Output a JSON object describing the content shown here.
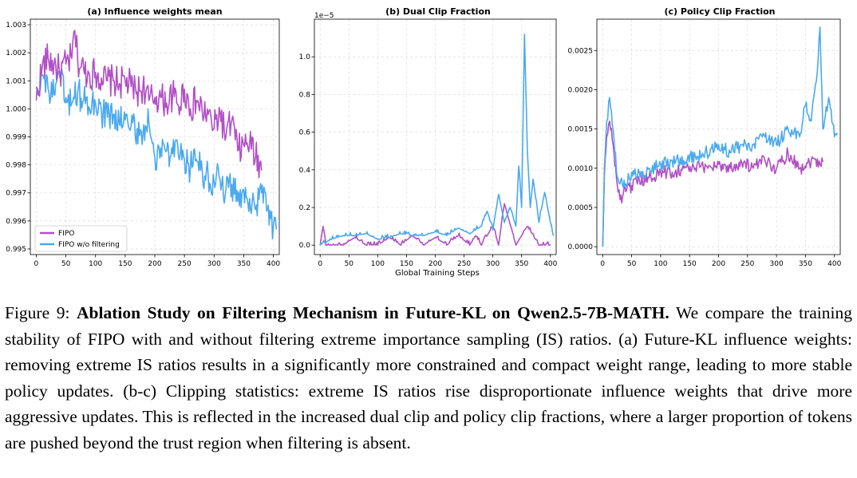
{
  "figure": {
    "shared_xlabel": "Global Training Steps",
    "legend": [
      "FIPO",
      "FIPO w/o filtering"
    ]
  },
  "colors": {
    "fipo": "#b150c5",
    "fipo_wo_filtering": "#4aa9ef"
  },
  "caption": {
    "label": "Figure 9:",
    "bold": "Ablation Study on Filtering Mechanism in Future-KL on Qwen2.5-7B-MATH.",
    "text": "We compare the training stability of FIPO with and without filtering extreme importance sampling (IS) ratios. (a) Future-KL influence weights: removing extreme IS ratios results in a significantly more constrained and compact weight range, leading to more stable policy updates. (b-c) Clipping statistics: extreme IS ratios rise disproportionate influence weights that drive more aggressive updates. This is reflected in the increased dual clip and policy clip fractions, where a larger proportion of tokens are pushed beyond the trust region when filtering is absent."
  },
  "chart_data": [
    {
      "type": "line",
      "title": "(a) Influence weights mean",
      "xlabel": "",
      "ylabel": "",
      "xlim": [
        -10,
        410
      ],
      "ylim": [
        0.9948,
        1.0032
      ],
      "xticks": [
        0,
        50,
        100,
        150,
        200,
        250,
        300,
        350,
        400
      ],
      "xtick_labels": [
        "0",
        "50",
        "100",
        "150",
        "200",
        "250",
        "300",
        "350",
        "400"
      ],
      "yticks": [
        0.995,
        0.996,
        0.997,
        0.998,
        0.999,
        1.0,
        1.001,
        1.002,
        1.003
      ],
      "ytick_labels": [
        "0.995",
        "0.996",
        "0.997",
        "0.998",
        "0.999",
        "1.000",
        "1.001",
        "1.002",
        "1.003"
      ],
      "grid": true,
      "legend_position": "lower-left",
      "series": [
        {
          "name": "FIPO",
          "x": [
            0,
            10,
            20,
            30,
            40,
            50,
            60,
            65,
            70,
            80,
            90,
            100,
            110,
            120,
            130,
            140,
            150,
            160,
            170,
            180,
            190,
            200,
            210,
            220,
            230,
            240,
            250,
            260,
            270,
            280,
            290,
            300,
            310,
            320,
            330,
            340,
            350,
            360,
            370,
            380
          ],
          "y": [
            1.0003,
            1.0015,
            1.0018,
            1.0016,
            1.0013,
            1.0016,
            1.0018,
            1.0028,
            1.0017,
            1.0014,
            1.0012,
            1.0013,
            1.0011,
            1.001,
            1.001,
            1.0009,
            1.001,
            1.0008,
            1.0006,
            1.0008,
            1.0003,
            1.0004,
            1.0004,
            1.0002,
            1.0005,
            1.0001,
            1.0007,
            1.0,
            1.0003,
            0.9999,
            0.9998,
            0.9993,
            0.9999,
            0.999,
            0.9996,
            0.9985,
            0.9987,
            0.9988,
            0.9983,
            0.9978
          ]
        },
        {
          "name": "FIPO w/o filtering",
          "x": [
            0,
            10,
            20,
            30,
            40,
            50,
            60,
            70,
            80,
            90,
            100,
            110,
            120,
            130,
            140,
            150,
            160,
            170,
            180,
            190,
            200,
            210,
            220,
            230,
            240,
            250,
            260,
            270,
            280,
            290,
            300,
            310,
            320,
            330,
            340,
            350,
            360,
            370,
            380,
            390,
            400,
            405
          ],
          "y": [
            1.0008,
            1.0012,
            1.0007,
            1.0005,
            1.0011,
            1.0004,
            1.0002,
            1.0006,
            1.0003,
            1.0,
            1.0002,
            0.9999,
            0.9997,
            0.9998,
            0.9995,
            0.9996,
            0.9994,
            0.9993,
            0.9991,
            0.9995,
            0.9983,
            0.9986,
            0.9985,
            0.9984,
            0.9983,
            0.9982,
            0.9979,
            0.9982,
            0.9978,
            0.9976,
            0.9974,
            0.9975,
            0.9971,
            0.9973,
            0.9967,
            0.9971,
            0.9968,
            0.9964,
            0.997,
            0.9964,
            0.9958,
            0.9957
          ]
        }
      ]
    },
    {
      "type": "line",
      "title": "(b) Dual Clip Fraction",
      "xlabel": "Global Training Steps",
      "ylabel": "",
      "offset_text": "1e−5",
      "xlim": [
        -10,
        410
      ],
      "ylim": [
        -0.05,
        1.2
      ],
      "xticks": [
        0,
        50,
        100,
        150,
        200,
        250,
        300,
        350,
        400
      ],
      "xtick_labels": [
        "0",
        "50",
        "100",
        "150",
        "200",
        "250",
        "300",
        "350",
        "400"
      ],
      "yticks": [
        0.0,
        0.2,
        0.4,
        0.6,
        0.8,
        1.0
      ],
      "ytick_labels": [
        "0.0",
        "0.2",
        "0.4",
        "0.6",
        "0.8",
        "1.0"
      ],
      "grid": true,
      "series": [
        {
          "name": "FIPO",
          "x": [
            0,
            5,
            10,
            20,
            40,
            60,
            80,
            100,
            120,
            140,
            160,
            180,
            200,
            220,
            240,
            260,
            270,
            280,
            300,
            310,
            320,
            340,
            360,
            380,
            400
          ],
          "y": [
            0.0,
            0.1,
            0.0,
            0.0,
            0.0,
            0.04,
            0.0,
            0.0,
            0.04,
            0.0,
            0.05,
            0.0,
            0.04,
            0.0,
            0.05,
            0.0,
            0.05,
            0.0,
            0.1,
            0.0,
            0.22,
            0.0,
            0.1,
            0.0,
            0.0
          ]
        },
        {
          "name": "FIPO w/o filtering",
          "x": [
            0,
            20,
            40,
            60,
            80,
            100,
            120,
            140,
            160,
            180,
            200,
            220,
            240,
            260,
            280,
            290,
            300,
            310,
            320,
            330,
            340,
            345,
            350,
            355,
            360,
            365,
            370,
            380,
            390,
            400,
            405
          ],
          "y": [
            0.0,
            0.03,
            0.05,
            0.05,
            0.06,
            0.03,
            0.04,
            0.06,
            0.05,
            0.05,
            0.07,
            0.05,
            0.09,
            0.06,
            0.1,
            0.18,
            0.08,
            0.27,
            0.12,
            0.2,
            0.1,
            0.42,
            0.2,
            1.12,
            0.5,
            0.2,
            0.35,
            0.12,
            0.28,
            0.12,
            0.05
          ]
        }
      ]
    },
    {
      "type": "line",
      "title": "(c) Policy Clip Fraction",
      "xlabel": "",
      "ylabel": "",
      "xlim": [
        -10,
        410
      ],
      "ylim": [
        -0.0001,
        0.0029
      ],
      "xticks": [
        0,
        50,
        100,
        150,
        200,
        250,
        300,
        350,
        400
      ],
      "xtick_labels": [
        "0",
        "50",
        "100",
        "150",
        "200",
        "250",
        "300",
        "350",
        "400"
      ],
      "yticks": [
        0.0,
        0.0005,
        0.001,
        0.0015,
        0.002,
        0.0025
      ],
      "ytick_labels": [
        "0.0000",
        "0.0005",
        "0.0010",
        "0.0015",
        "0.0020",
        "0.0025"
      ],
      "grid": true,
      "series": [
        {
          "name": "FIPO",
          "x": [
            0,
            3,
            7,
            12,
            18,
            25,
            30,
            40,
            50,
            60,
            80,
            100,
            120,
            140,
            160,
            180,
            200,
            220,
            240,
            260,
            280,
            300,
            320,
            340,
            360,
            380
          ],
          "y": [
            0.0,
            0.0009,
            0.0014,
            0.0016,
            0.0013,
            0.0008,
            0.0006,
            0.0007,
            0.00078,
            0.0008,
            0.00088,
            0.00095,
            0.00095,
            0.001,
            0.001,
            0.00102,
            0.00105,
            0.001,
            0.00108,
            0.001,
            0.0011,
            0.001,
            0.0012,
            0.001,
            0.0011,
            0.00108
          ]
        },
        {
          "name": "FIPO w/o filtering",
          "x": [
            0,
            3,
            7,
            12,
            18,
            25,
            30,
            40,
            50,
            60,
            80,
            100,
            120,
            140,
            160,
            180,
            200,
            220,
            240,
            260,
            280,
            300,
            320,
            340,
            350,
            360,
            370,
            375,
            380,
            390,
            400,
            405
          ],
          "y": [
            0.0,
            0.001,
            0.0016,
            0.0019,
            0.0015,
            0.0009,
            0.0008,
            0.0008,
            0.00095,
            0.0009,
            0.001,
            0.00105,
            0.0011,
            0.0011,
            0.00115,
            0.0012,
            0.0013,
            0.0012,
            0.0013,
            0.0013,
            0.0014,
            0.0013,
            0.0015,
            0.0014,
            0.0018,
            0.0016,
            0.0022,
            0.0028,
            0.0015,
            0.0019,
            0.0014,
            0.00145
          ]
        }
      ]
    }
  ]
}
